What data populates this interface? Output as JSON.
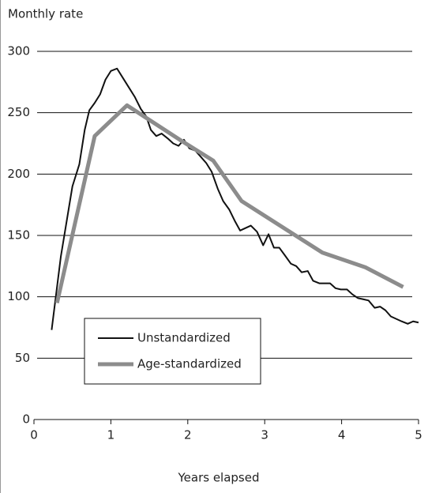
{
  "chart_data": {
    "type": "line",
    "ylabel": "Monthly rate",
    "xlabel": "Years elapsed",
    "xlim": [
      0,
      5
    ],
    "xticks": [
      0,
      1,
      2,
      3,
      4,
      5
    ],
    "ylim": [
      0,
      300
    ],
    "yticks": [
      0,
      50,
      100,
      150,
      200,
      250,
      300
    ],
    "grid": true,
    "legend": "lower left",
    "series": [
      {
        "name": "Unstandardized",
        "color": "#111111",
        "width": 2,
        "x": [
          0.23,
          0.35,
          0.5,
          0.59,
          0.66,
          0.72,
          0.79,
          0.86,
          0.93,
          1.0,
          1.08,
          1.16,
          1.23,
          1.31,
          1.39,
          1.46,
          1.52,
          1.59,
          1.66,
          1.74,
          1.81,
          1.88,
          1.95,
          2.02,
          2.1,
          2.17,
          2.24,
          2.31,
          2.39,
          2.46,
          2.54,
          2.61,
          2.68,
          2.75,
          2.82,
          2.9,
          2.98,
          3.05,
          3.12,
          3.19,
          3.26,
          3.34,
          3.41,
          3.48,
          3.56,
          3.63,
          3.71,
          3.78,
          3.85,
          3.92,
          3.99,
          4.07,
          4.14,
          4.21,
          4.28,
          4.35,
          4.43,
          4.5,
          4.57,
          4.64,
          4.71,
          4.78,
          4.86,
          4.93,
          5.0
        ],
        "values": [
          73,
          133,
          190,
          208,
          236,
          252,
          258,
          265,
          277,
          284,
          286,
          278,
          271,
          263,
          253,
          247,
          236,
          231,
          233,
          229,
          225,
          223,
          228,
          221,
          219,
          214,
          209,
          202,
          188,
          178,
          171,
          162,
          154,
          156,
          158,
          153,
          142,
          151,
          140,
          140,
          134,
          127,
          125,
          120,
          121,
          113,
          111,
          111,
          111,
          107,
          106,
          106,
          102,
          99,
          98,
          97,
          91,
          92,
          89,
          84,
          82,
          80,
          78,
          80,
          79
        ]
      },
      {
        "name": "Age-standardized",
        "color": "#8c8c8c",
        "width": 5,
        "x": [
          0.3,
          0.79,
          1.21,
          1.92,
          2.33,
          2.7,
          3.75,
          4.31,
          4.8
        ],
        "values": [
          95,
          231,
          256,
          227,
          211,
          178,
          136,
          124,
          108
        ]
      }
    ]
  }
}
